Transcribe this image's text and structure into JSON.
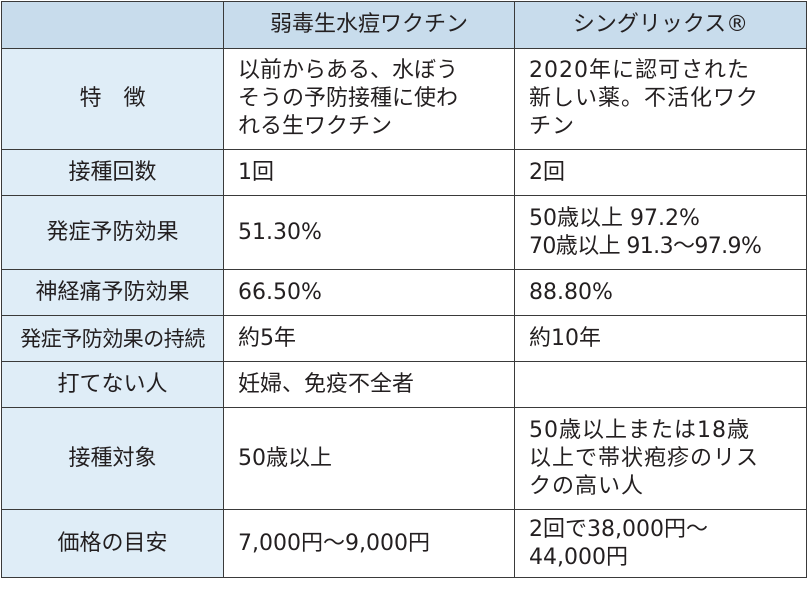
{
  "table": {
    "headers": [
      "",
      "弱毒生水痘ワクチン",
      "シングリックス®"
    ],
    "rows": [
      {
        "label": "特　徴",
        "col1": [
          "以前からある、水ぼう",
          "そうの予防接種に使わ",
          "れる生ワクチン"
        ],
        "col2": [
          "2020年に認可された",
          "新しい薬。不活化ワク",
          "チン"
        ]
      },
      {
        "label": "接種回数",
        "col1": [
          "1回"
        ],
        "col2": [
          "2回"
        ]
      },
      {
        "label": "発症予防効果",
        "col1": [
          "51.30%"
        ],
        "col2": [
          "50歳以上 97.2%",
          "70歳以上 91.3〜97.9%"
        ]
      },
      {
        "label": "神経痛予防効果",
        "col1": [
          "66.50%"
        ],
        "col2": [
          "88.80%"
        ]
      },
      {
        "label": "発症予防効果の持続",
        "col1": [
          "約5年"
        ],
        "col2": [
          "約10年"
        ]
      },
      {
        "label": "打てない人",
        "col1": [
          "妊婦、免疫不全者"
        ],
        "col2": []
      },
      {
        "label": "接種対象",
        "col1": [
          "50歳以上"
        ],
        "col2": [
          "50歳以上または18歳",
          "以上で帯状疱疹のリス",
          "クの高い人"
        ]
      },
      {
        "label": "価格の目安",
        "col1": [
          "7,000円〜9,000円"
        ],
        "col2": [
          "2回で38,000円〜",
          "44,000円"
        ]
      }
    ]
  },
  "colors": {
    "header_bg": "#c8dcec",
    "label_bg": "#dfedf7",
    "border": "#3a3a3a",
    "text": "#231f20"
  }
}
